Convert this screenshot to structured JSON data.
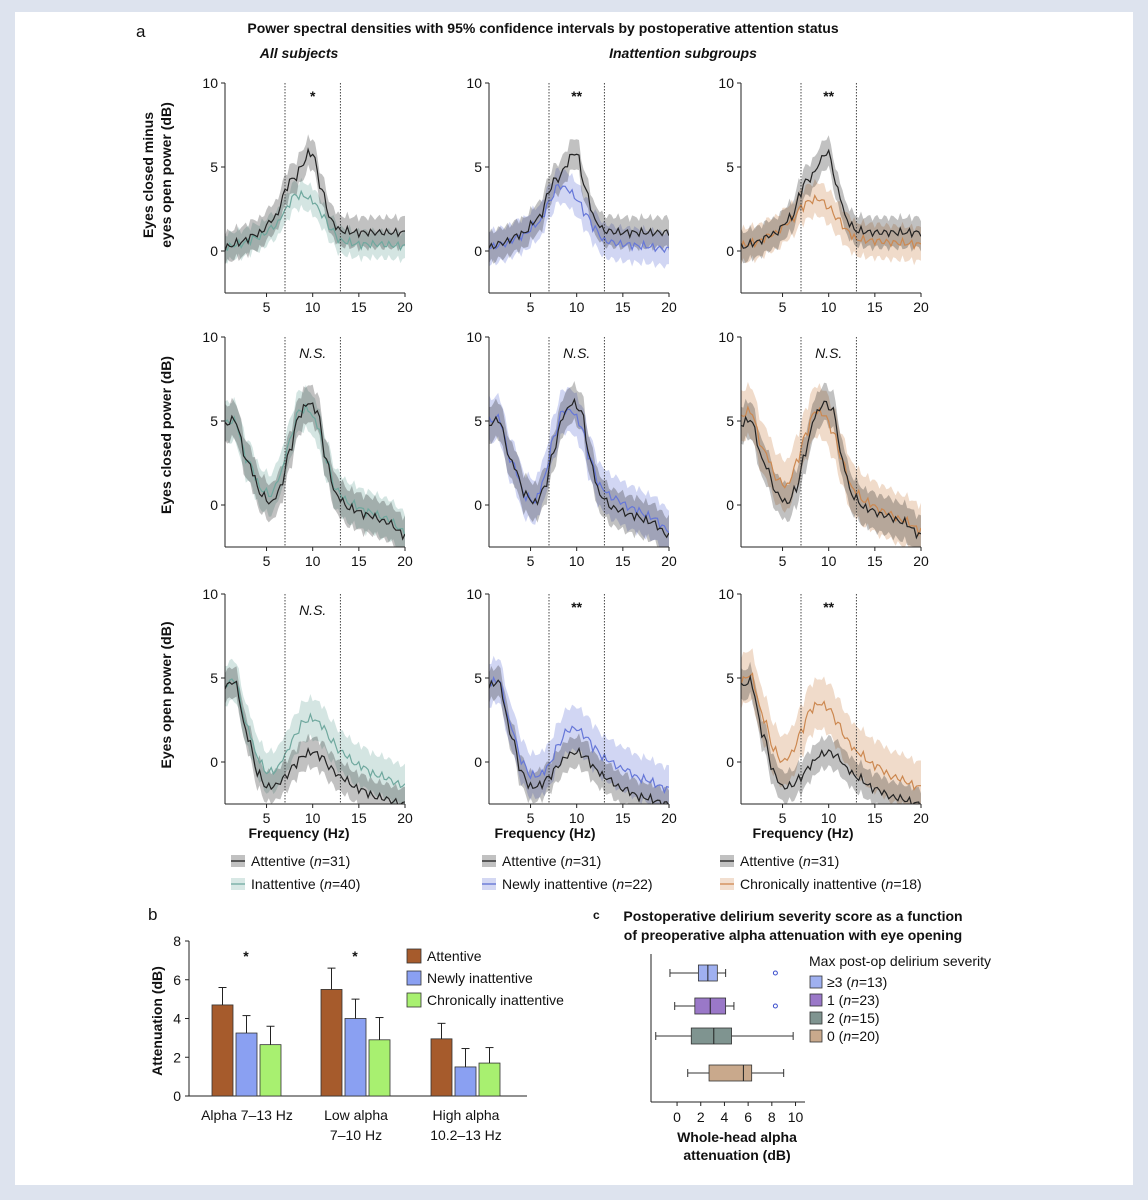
{
  "panel_a": {
    "label": "a",
    "title": "Power spectral densities with 95% confidence intervals by postoperative attention status",
    "col_headers": [
      "All subjects",
      "Inattention subgroups"
    ],
    "row_ylabels": [
      [
        "Eyes closed minus",
        "eyes open power (dB)"
      ],
      [
        "Eyes closed power (dB)"
      ],
      [
        "Eyes open power (dB)"
      ]
    ],
    "xlabel": "Frequency (Hz)",
    "legends": [
      [
        {
          "label": "Attentive (n=31)",
          "color": "#333333"
        },
        {
          "label": "Inattentive (n=40)",
          "color": "#7fb3aa"
        }
      ],
      [
        {
          "label": "Attentive (n=31)",
          "color": "#333333"
        },
        {
          "label": "Newly inattentive (n=22)",
          "color": "#6f7fd6"
        }
      ],
      [
        {
          "label": "Attentive (n=31)",
          "color": "#333333"
        },
        {
          "label": "Chronically inattentive (n=18)",
          "color": "#d49463"
        }
      ]
    ]
  },
  "panel_b": {
    "label": "b",
    "legend": [
      "Attentive",
      "Newly inattentive",
      "Chronically inattentive"
    ]
  },
  "panel_c": {
    "label": "c",
    "title_lines": [
      "Postoperative delirium  severity score as a function",
      "of preoperative alpha attenuation with eye opening"
    ],
    "legend_title": "Max post-op delirium severity",
    "legend": [
      "≥3 (n=13)",
      "1 (n=23)",
      "2 (n=15)",
      "0 (n=20)"
    ]
  },
  "colors": {
    "attentive": "#222222",
    "inattentive": "#6fa89e",
    "newly": "#6677d8",
    "chronic": "#cc8850",
    "bar_attentive": "#a65b2c",
    "bar_newly": "#8aa0f2",
    "bar_chronic": "#a8f070"
  },
  "chart_data": [
    {
      "type": "line",
      "panel": "a",
      "x_range": [
        0.5,
        20
      ],
      "x_ticks": [
        5,
        10,
        15,
        20
      ],
      "y_ticks": [
        0,
        5,
        10
      ],
      "alpha_band_lines": [
        7,
        13
      ],
      "rows": [
        {
          "ylim": [
            -2.5,
            10
          ],
          "significance": [
            "*",
            "**",
            "**"
          ],
          "series": {
            "attentive": {
              "x": [
                0.5,
                2,
                4,
                6,
                7,
                7.5,
                8,
                9,
                9.5,
                10,
                11,
                12,
                13,
                15,
                17,
                20
              ],
              "y": [
                0.2,
                0.5,
                1,
                2,
                3.5,
                4.2,
                4.3,
                5.2,
                5.8,
                5.8,
                3.6,
                1.8,
                1.2,
                1.1,
                1.1,
                1.1
              ],
              "ci": 0.9
            },
            "inattentive": {
              "x": [
                0.5,
                2,
                4,
                6,
                7,
                8,
                9,
                10,
                11,
                12,
                13,
                15,
                17,
                20
              ],
              "y": [
                0.2,
                0.4,
                0.8,
                1.5,
                2.4,
                3.3,
                3.3,
                3.0,
                2.2,
                1.3,
                0.6,
                0.4,
                0.4,
                0.3
              ],
              "ci": 0.8
            },
            "newly": {
              "x": [
                0.5,
                2,
                4,
                6,
                7,
                8,
                9,
                10,
                11,
                12,
                13,
                15,
                17,
                20
              ],
              "y": [
                0.2,
                0.4,
                0.9,
                1.7,
                2.9,
                3.9,
                3.7,
                3.1,
                2.2,
                1.3,
                0.6,
                0.4,
                0.3,
                0.1
              ],
              "ci": 1.0
            },
            "chronic": {
              "x": [
                0.5,
                2,
                4,
                6,
                7,
                8,
                9,
                10,
                11,
                12,
                13,
                15,
                17,
                20
              ],
              "y": [
                0.3,
                0.5,
                1.0,
                1.8,
                2.6,
                3.0,
                3.1,
                2.6,
                1.9,
                1.2,
                0.7,
                0.6,
                0.5,
                0.4
              ],
              "ci": 1.0
            }
          }
        },
        {
          "ylim": [
            -2.5,
            10
          ],
          "significance": [
            "N.S.",
            "N.S.",
            "N.S."
          ],
          "series": {
            "attentive": {
              "x": [
                0.5,
                1.5,
                3,
                4.5,
                5.5,
                6.5,
                7.5,
                8.5,
                9.5,
                10.5,
                11.5,
                12.5,
                14,
                16,
                18,
                20
              ],
              "y": [
                4.8,
                5.1,
                2.5,
                0.6,
                0.1,
                1.0,
                3.2,
                5.3,
                6.1,
                5.6,
                2.6,
                0.6,
                -0.2,
                -0.6,
                -1.0,
                -1.8
              ],
              "ci": 1.1
            },
            "inattentive": {
              "x": [
                0.5,
                1.5,
                3,
                4.5,
                5.5,
                6.5,
                7.5,
                8.5,
                9.5,
                10.5,
                11.5,
                12.5,
                14,
                16,
                18,
                20
              ],
              "y": [
                4.9,
                5.0,
                2.6,
                0.9,
                0.6,
                1.8,
                3.8,
                5.6,
                5.7,
                4.8,
                2.7,
                0.9,
                0.1,
                -0.4,
                -0.8,
                -1.6
              ],
              "ci": 1.2
            },
            "newly": {
              "x": [
                0.5,
                1.5,
                3,
                4.5,
                5.5,
                6.5,
                7.5,
                8.5,
                9.5,
                10.5,
                11.5,
                12.5,
                14,
                16,
                18,
                20
              ],
              "y": [
                5.0,
                5.2,
                2.5,
                0.5,
                0.2,
                1.6,
                4.0,
                5.6,
                5.6,
                4.7,
                2.7,
                1.1,
                0.4,
                -0.2,
                -0.7,
                -1.5
              ],
              "ci": 1.3
            },
            "chronic": {
              "x": [
                0.5,
                1.5,
                3,
                4.5,
                5.5,
                6.5,
                7.5,
                8.5,
                9.5,
                10.5,
                11.5,
                12.5,
                14,
                16,
                18,
                20
              ],
              "y": [
                5.3,
                5.6,
                3.2,
                1.5,
                1.1,
                2.5,
                4.2,
                5.6,
                5.4,
                4.3,
                2.6,
                1.0,
                0.2,
                -0.4,
                -0.9,
                -1.5
              ],
              "ci": 1.5
            }
          }
        },
        {
          "ylim": [
            -2.5,
            10
          ],
          "significance": [
            "N.S.",
            "**",
            "**"
          ],
          "series": {
            "attentive": {
              "x": [
                0.5,
                1.5,
                3,
                4,
                5,
                6,
                7,
                8,
                9,
                10,
                11,
                12,
                13,
                15,
                17,
                20
              ],
              "y": [
                4.5,
                4.8,
                1.5,
                -0.6,
                -1.5,
                -1.4,
                -0.9,
                -0.2,
                0.4,
                0.6,
                0.3,
                -0.4,
                -0.9,
                -1.6,
                -2.1,
                -2.5
              ],
              "ci": 0.9
            },
            "inattentive": {
              "x": [
                0.5,
                1.5,
                3,
                4,
                5,
                6,
                7,
                8,
                9,
                10,
                11,
                12,
                13,
                15,
                17,
                20
              ],
              "y": [
                4.6,
                4.9,
                2.0,
                0.3,
                -0.6,
                -0.5,
                0.4,
                1.5,
                2.4,
                2.6,
                2.2,
                1.3,
                0.6,
                -0.2,
                -0.8,
                -1.4
              ],
              "ci": 1.2
            },
            "newly": {
              "x": [
                0.5,
                1.5,
                3,
                4,
                5,
                6,
                7,
                8,
                9,
                10,
                11,
                12,
                13,
                15,
                17,
                20
              ],
              "y": [
                4.6,
                4.9,
                2.0,
                0.1,
                -0.8,
                -0.8,
                -0.2,
                1.0,
                1.9,
                2.0,
                1.5,
                0.8,
                0.2,
                -0.4,
                -1.0,
                -1.6
              ],
              "ci": 1.3
            },
            "chronic": {
              "x": [
                0.5,
                1.5,
                3,
                4,
                5,
                6,
                7,
                8,
                9,
                10,
                11,
                12,
                13,
                15,
                17,
                20
              ],
              "y": [
                4.8,
                5.2,
                2.6,
                0.8,
                0.0,
                0.5,
                1.8,
                3.1,
                3.5,
                3.2,
                2.3,
                1.3,
                0.6,
                -0.2,
                -0.9,
                -1.5
              ],
              "ci": 1.5
            }
          }
        }
      ],
      "columns": [
        [
          "attentive",
          "inattentive"
        ],
        [
          "attentive",
          "newly"
        ],
        [
          "attentive",
          "chronic"
        ]
      ]
    },
    {
      "type": "bar",
      "panel": "b",
      "ylabel": "Attenuation (dB)",
      "ylim": [
        0,
        8
      ],
      "y_ticks": [
        0,
        2,
        4,
        6,
        8
      ],
      "categories": [
        [
          "Alpha 7–13 Hz"
        ],
        [
          "Low alpha",
          "7–10 Hz"
        ],
        [
          "High alpha",
          "10.2–13 Hz"
        ]
      ],
      "significance": [
        "*",
        "*",
        ""
      ],
      "series": [
        {
          "name": "Attentive",
          "values": [
            4.7,
            5.5,
            2.95
          ],
          "err": [
            0.9,
            1.1,
            0.8
          ]
        },
        {
          "name": "Newly inattentive",
          "values": [
            3.25,
            4.0,
            1.5
          ],
          "err": [
            0.9,
            1.0,
            0.95
          ]
        },
        {
          "name": "Chronically inattentive",
          "values": [
            2.65,
            2.9,
            1.7
          ],
          "err": [
            0.95,
            1.15,
            0.8
          ]
        }
      ]
    },
    {
      "type": "box",
      "panel": "c",
      "xlabel": "Whole-head alpha attenuation (dB)",
      "xlim": [
        -2.2,
        10.8
      ],
      "x_ticks": [
        0,
        2,
        4,
        6,
        8,
        10
      ],
      "boxes": [
        {
          "group": "≥3",
          "whisker_low": -0.6,
          "q1": 1.8,
          "median": 2.6,
          "q3": 3.4,
          "whisker_high": 4.1,
          "outliers": [
            8.3
          ],
          "color": "#9fb0f0"
        },
        {
          "group": "1",
          "whisker_low": -0.2,
          "q1": 1.5,
          "median": 2.8,
          "q3": 4.1,
          "whisker_high": 4.8,
          "outliers": [
            8.3
          ],
          "color": "#9a78c8"
        },
        {
          "group": "2",
          "whisker_low": -1.8,
          "q1": 1.2,
          "median": 3.1,
          "q3": 4.6,
          "whisker_high": 9.8,
          "outliers": [],
          "color": "#7f9490"
        },
        {
          "group": "0",
          "whisker_low": 0.9,
          "q1": 2.7,
          "median": 5.6,
          "q3": 6.3,
          "whisker_high": 9.0,
          "outliers": [],
          "color": "#c9a98c"
        }
      ]
    }
  ]
}
